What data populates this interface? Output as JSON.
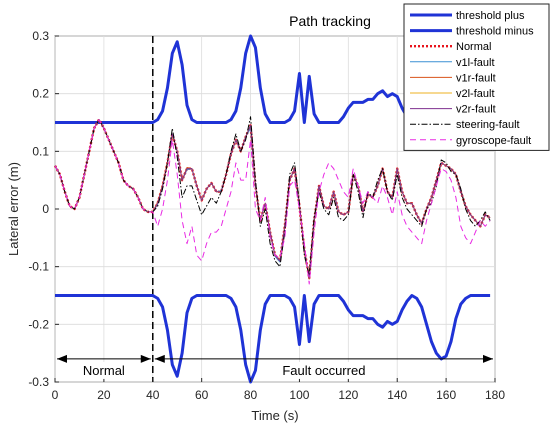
{
  "chart_data": {
    "type": "line",
    "title": "Path tracking",
    "xlabel": "Time (s)",
    "ylabel": "Lateral error (m)",
    "xlim": [
      0,
      180
    ],
    "ylim": [
      -0.3,
      0.3
    ],
    "xticks": [
      0,
      20,
      40,
      60,
      80,
      100,
      120,
      140,
      160,
      180
    ],
    "yticks": [
      -0.3,
      -0.2,
      -0.1,
      0,
      0.1,
      0.2,
      0.3
    ],
    "grid": true,
    "legend_position": "top-right",
    "fault_onset_x": 40,
    "annotations": [
      {
        "text": "Normal",
        "from": 0,
        "to": 40
      },
      {
        "text": "Fault occurred",
        "from": 40,
        "to": 180
      }
    ],
    "x": [
      0,
      2,
      4,
      6,
      8,
      10,
      12,
      14,
      16,
      18,
      20,
      22,
      24,
      26,
      28,
      30,
      32,
      34,
      36,
      38,
      40,
      42,
      44,
      46,
      48,
      50,
      52,
      54,
      56,
      58,
      60,
      62,
      64,
      66,
      68,
      70,
      72,
      74,
      76,
      78,
      80,
      82,
      84,
      86,
      88,
      90,
      92,
      94,
      96,
      98,
      100,
      102,
      104,
      106,
      108,
      110,
      112,
      114,
      116,
      118,
      120,
      122,
      124,
      126,
      128,
      130,
      132,
      134,
      136,
      138,
      140,
      142,
      144,
      146,
      148,
      150,
      152,
      154,
      156,
      158,
      160,
      162,
      164,
      166,
      168,
      170,
      172,
      174,
      176,
      178
    ],
    "series": [
      {
        "name": "threshold plus",
        "color": "#1f33d6",
        "width": 3,
        "dash": "",
        "values": [
          0.15,
          0.15,
          0.15,
          0.15,
          0.15,
          0.15,
          0.15,
          0.15,
          0.15,
          0.15,
          0.15,
          0.15,
          0.15,
          0.15,
          0.15,
          0.15,
          0.15,
          0.15,
          0.15,
          0.15,
          0.15,
          0.155,
          0.17,
          0.21,
          0.27,
          0.29,
          0.25,
          0.18,
          0.155,
          0.15,
          0.15,
          0.15,
          0.15,
          0.15,
          0.15,
          0.15,
          0.155,
          0.17,
          0.21,
          0.27,
          0.3,
          0.28,
          0.21,
          0.165,
          0.15,
          0.15,
          0.15,
          0.15,
          0.155,
          0.17,
          0.235,
          0.15,
          0.23,
          0.165,
          0.15,
          0.15,
          0.15,
          0.15,
          0.15,
          0.16,
          0.175,
          0.185,
          0.185,
          0.185,
          0.19,
          0.19,
          0.2,
          0.205,
          0.195,
          0.2,
          0.195,
          0.175,
          0.16,
          0.15,
          0.155,
          0.17,
          0.2,
          0.23,
          0.25,
          0.26,
          0.255,
          0.23,
          0.19,
          0.165,
          0.155,
          0.15,
          0.15,
          0.15,
          0.15,
          0.15
        ]
      },
      {
        "name": "threshold minus",
        "color": "#1f33d6",
        "width": 3,
        "dash": "",
        "values": [
          -0.15,
          -0.15,
          -0.15,
          -0.15,
          -0.15,
          -0.15,
          -0.15,
          -0.15,
          -0.15,
          -0.15,
          -0.15,
          -0.15,
          -0.15,
          -0.15,
          -0.15,
          -0.15,
          -0.15,
          -0.15,
          -0.15,
          -0.15,
          -0.15,
          -0.155,
          -0.17,
          -0.21,
          -0.27,
          -0.29,
          -0.25,
          -0.18,
          -0.155,
          -0.15,
          -0.15,
          -0.15,
          -0.15,
          -0.15,
          -0.15,
          -0.15,
          -0.155,
          -0.17,
          -0.21,
          -0.27,
          -0.3,
          -0.28,
          -0.21,
          -0.165,
          -0.15,
          -0.15,
          -0.15,
          -0.15,
          -0.155,
          -0.17,
          -0.235,
          -0.15,
          -0.23,
          -0.165,
          -0.15,
          -0.15,
          -0.15,
          -0.15,
          -0.15,
          -0.16,
          -0.175,
          -0.185,
          -0.185,
          -0.185,
          -0.19,
          -0.19,
          -0.2,
          -0.205,
          -0.195,
          -0.2,
          -0.195,
          -0.175,
          -0.16,
          -0.15,
          -0.155,
          -0.17,
          -0.2,
          -0.23,
          -0.25,
          -0.26,
          -0.255,
          -0.23,
          -0.19,
          -0.165,
          -0.155,
          -0.15,
          -0.15,
          -0.15,
          -0.15,
          -0.15
        ]
      },
      {
        "name": "Normal",
        "color": "#e8141c",
        "width": 2.4,
        "dash": "2,2",
        "values": [
          0.075,
          0.06,
          0.03,
          0.005,
          0.0,
          0.02,
          0.06,
          0.1,
          0.14,
          0.155,
          0.14,
          0.12,
          0.1,
          0.08,
          0.05,
          0.04,
          0.035,
          0.02,
          0.0,
          -0.005,
          -0.005,
          0.01,
          0.04,
          0.08,
          0.13,
          0.1,
          0.05,
          0.07,
          0.07,
          0.04,
          0.015,
          0.035,
          0.045,
          0.03,
          0.03,
          0.06,
          0.095,
          0.12,
          0.1,
          0.125,
          0.145,
          0.04,
          -0.02,
          0.01,
          -0.04,
          -0.08,
          -0.09,
          -0.03,
          0.05,
          0.07,
          0.005,
          -0.07,
          -0.12,
          -0.02,
          0.04,
          0.005,
          0.0,
          0.03,
          -0.005,
          -0.01,
          -0.005,
          0.06,
          0.04,
          -0.005,
          0.025,
          0.02,
          0.04,
          0.07,
          0.03,
          0.02,
          0.07,
          0.03,
          0.01,
          0.01,
          -0.01,
          -0.025,
          0.0,
          0.02,
          0.05,
          0.08,
          0.075,
          0.07,
          0.06,
          0.03,
          0.005,
          -0.01,
          -0.02,
          -0.03,
          -0.01,
          -0.015
        ]
      },
      {
        "name": "v1l-fault",
        "color": "#3a8fd4",
        "width": 1,
        "dash": "",
        "values": [
          0.075,
          0.06,
          0.03,
          0.005,
          0.0,
          0.02,
          0.06,
          0.1,
          0.14,
          0.155,
          0.14,
          0.12,
          0.1,
          0.08,
          0.05,
          0.04,
          0.035,
          0.02,
          0.0,
          -0.005,
          -0.005,
          0.008,
          0.038,
          0.08,
          0.13,
          0.1,
          0.05,
          0.068,
          0.07,
          0.04,
          0.015,
          0.035,
          0.045,
          0.03,
          0.032,
          0.06,
          0.095,
          0.12,
          0.1,
          0.125,
          0.14,
          0.04,
          -0.02,
          0.01,
          -0.04,
          -0.082,
          -0.092,
          -0.03,
          0.05,
          0.07,
          0.005,
          -0.07,
          -0.12,
          -0.02,
          0.04,
          0.005,
          0.0,
          0.03,
          -0.005,
          -0.01,
          -0.005,
          0.06,
          0.04,
          -0.005,
          0.025,
          0.02,
          0.04,
          0.07,
          0.03,
          0.02,
          0.07,
          0.03,
          0.01,
          0.01,
          -0.01,
          -0.025,
          0.0,
          0.02,
          0.05,
          0.08,
          0.075,
          0.07,
          0.06,
          0.03,
          0.005,
          -0.01,
          -0.02,
          -0.03,
          -0.01,
          -0.015
        ]
      },
      {
        "name": "v1r-fault",
        "color": "#d95319",
        "width": 1,
        "dash": "",
        "values": [
          0.075,
          0.06,
          0.03,
          0.005,
          0.0,
          0.02,
          0.06,
          0.1,
          0.14,
          0.155,
          0.14,
          0.12,
          0.1,
          0.08,
          0.05,
          0.04,
          0.035,
          0.02,
          0.0,
          -0.005,
          -0.005,
          0.012,
          0.042,
          0.082,
          0.128,
          0.1,
          0.05,
          0.072,
          0.07,
          0.04,
          0.015,
          0.035,
          0.045,
          0.03,
          0.03,
          0.06,
          0.095,
          0.12,
          0.1,
          0.125,
          0.145,
          0.04,
          -0.02,
          0.01,
          -0.04,
          -0.08,
          -0.09,
          -0.03,
          0.05,
          0.07,
          0.005,
          -0.07,
          -0.12,
          -0.02,
          0.04,
          0.005,
          0.0,
          0.03,
          -0.005,
          -0.01,
          -0.005,
          0.06,
          0.04,
          -0.005,
          0.025,
          0.02,
          0.04,
          0.07,
          0.03,
          0.02,
          0.07,
          0.03,
          0.01,
          0.01,
          -0.01,
          -0.025,
          0.0,
          0.02,
          0.05,
          0.08,
          0.075,
          0.07,
          0.06,
          0.03,
          0.005,
          -0.01,
          -0.02,
          -0.03,
          -0.01,
          -0.015
        ]
      },
      {
        "name": "v2l-fault",
        "color": "#edb120",
        "width": 1,
        "dash": "",
        "values": [
          0.075,
          0.06,
          0.03,
          0.005,
          0.0,
          0.02,
          0.06,
          0.1,
          0.14,
          0.155,
          0.14,
          0.12,
          0.1,
          0.08,
          0.05,
          0.04,
          0.035,
          0.02,
          0.0,
          -0.005,
          -0.005,
          0.01,
          0.04,
          0.08,
          0.13,
          0.1,
          0.05,
          0.07,
          0.07,
          0.04,
          0.015,
          0.035,
          0.045,
          0.03,
          0.03,
          0.06,
          0.095,
          0.12,
          0.1,
          0.125,
          0.145,
          0.04,
          -0.02,
          0.01,
          -0.04,
          -0.08,
          -0.09,
          -0.03,
          0.05,
          0.07,
          0.005,
          -0.07,
          -0.12,
          -0.02,
          0.04,
          0.005,
          0.0,
          0.03,
          -0.005,
          -0.01,
          -0.005,
          0.06,
          0.04,
          -0.005,
          0.025,
          0.02,
          0.04,
          0.07,
          0.03,
          0.02,
          0.07,
          0.03,
          0.01,
          0.01,
          -0.01,
          -0.025,
          0.0,
          0.02,
          0.05,
          0.08,
          0.075,
          0.07,
          0.06,
          0.03,
          0.005,
          -0.01,
          -0.02,
          -0.03,
          -0.01,
          -0.015
        ]
      },
      {
        "name": "v2r-fault",
        "color": "#7e2f8e",
        "width": 1,
        "dash": "",
        "values": [
          0.075,
          0.06,
          0.03,
          0.005,
          0.0,
          0.02,
          0.06,
          0.1,
          0.14,
          0.155,
          0.14,
          0.12,
          0.1,
          0.08,
          0.05,
          0.04,
          0.035,
          0.02,
          0.0,
          -0.005,
          -0.005,
          0.01,
          0.04,
          0.08,
          0.13,
          0.1,
          0.05,
          0.07,
          0.07,
          0.04,
          0.015,
          0.035,
          0.045,
          0.03,
          0.03,
          0.06,
          0.095,
          0.12,
          0.1,
          0.125,
          0.145,
          0.04,
          -0.02,
          0.01,
          -0.04,
          -0.08,
          -0.09,
          -0.03,
          0.05,
          0.07,
          0.005,
          -0.07,
          -0.12,
          -0.02,
          0.04,
          0.005,
          0.0,
          0.03,
          -0.005,
          -0.01,
          -0.005,
          0.06,
          0.04,
          -0.005,
          0.025,
          0.02,
          0.04,
          0.07,
          0.03,
          0.02,
          0.07,
          0.03,
          0.01,
          0.01,
          -0.01,
          -0.025,
          0.0,
          0.02,
          0.05,
          0.08,
          0.075,
          0.07,
          0.06,
          0.03,
          0.005,
          -0.01,
          -0.02,
          -0.03,
          -0.01,
          -0.015
        ]
      },
      {
        "name": "steering-fault",
        "color": "#000000",
        "width": 1,
        "dash": "6,2,1.5,2",
        "values": [
          0.075,
          0.06,
          0.03,
          0.005,
          0.0,
          0.02,
          0.06,
          0.1,
          0.14,
          0.155,
          0.14,
          0.12,
          0.1,
          0.08,
          0.05,
          0.04,
          0.035,
          0.02,
          0.0,
          -0.005,
          -0.005,
          0.005,
          0.035,
          0.08,
          0.14,
          0.09,
          0.02,
          0.04,
          0.04,
          0.015,
          -0.01,
          0.005,
          0.02,
          0.01,
          0.03,
          0.06,
          0.1,
          0.13,
          0.1,
          0.12,
          0.16,
          0.05,
          -0.03,
          0.0,
          -0.06,
          -0.09,
          -0.1,
          -0.04,
          0.06,
          0.08,
          0.01,
          -0.08,
          -0.115,
          -0.015,
          0.03,
          0.0,
          -0.01,
          0.02,
          -0.015,
          -0.02,
          -0.01,
          0.06,
          0.03,
          -0.015,
          0.03,
          0.02,
          0.05,
          0.07,
          0.03,
          0.015,
          0.06,
          0.02,
          0.0,
          -0.01,
          -0.02,
          -0.03,
          0.0,
          0.01,
          0.04,
          0.085,
          0.08,
          0.065,
          0.06,
          0.035,
          0.0,
          -0.02,
          -0.03,
          -0.02,
          -0.005,
          -0.02
        ]
      },
      {
        "name": "gyroscope-fault",
        "color": "#e82be3",
        "width": 1,
        "dash": "6,4",
        "values": [
          0.075,
          0.06,
          0.03,
          0.005,
          0.0,
          0.02,
          0.06,
          0.1,
          0.14,
          0.155,
          0.14,
          0.12,
          0.1,
          0.08,
          0.05,
          0.04,
          0.035,
          0.02,
          0.0,
          -0.005,
          -0.005,
          -0.03,
          0.0,
          0.05,
          0.12,
          0.06,
          -0.02,
          -0.06,
          -0.03,
          -0.08,
          -0.09,
          -0.06,
          -0.04,
          -0.04,
          -0.03,
          0.0,
          0.03,
          0.08,
          0.05,
          0.05,
          0.12,
          0.0,
          -0.02,
          0.02,
          -0.05,
          -0.08,
          -0.085,
          -0.05,
          0.04,
          0.05,
          0.0,
          -0.06,
          -0.13,
          -0.04,
          0.03,
          0.06,
          0.08,
          0.07,
          0.05,
          0.03,
          0.02,
          0.07,
          0.04,
          0.01,
          0.03,
          0.02,
          0.01,
          0.04,
          0.02,
          -0.01,
          0.03,
          -0.01,
          -0.03,
          -0.04,
          -0.05,
          -0.06,
          -0.02,
          0.01,
          0.04,
          0.07,
          0.065,
          0.05,
          0.02,
          -0.03,
          -0.05,
          -0.06,
          -0.04,
          -0.02,
          -0.03,
          -0.02
        ]
      }
    ]
  }
}
